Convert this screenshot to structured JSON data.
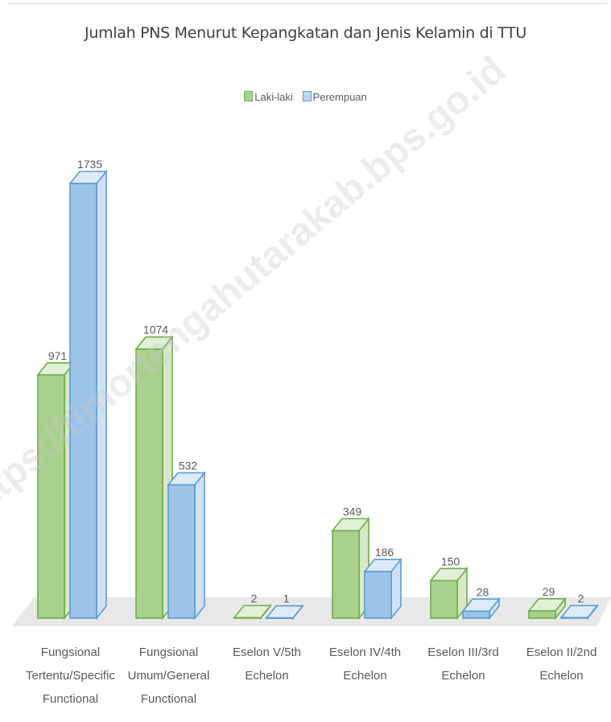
{
  "chart_data": {
    "type": "bar",
    "title": "Jumlah PNS Menurut Kepangkatan dan Jenis Kelamin di TTU",
    "categories": [
      [
        "Fungsional",
        "Tertentu/Specific",
        "Functional"
      ],
      [
        "Fungsional",
        "Umum/General",
        "Functional"
      ],
      [
        "Eselon V/5th",
        "Echelon"
      ],
      [
        "Eselon IV/4th",
        "Echelon"
      ],
      [
        "Eselon III/3rd",
        "Echelon"
      ],
      [
        "Eselon II/2nd",
        "Echelon"
      ]
    ],
    "series": [
      {
        "name": "Laki-laki",
        "values": [
          971,
          1074,
          2,
          349,
          150,
          29
        ],
        "color": "#70ad47"
      },
      {
        "name": "Perempuan",
        "values": [
          1735,
          532,
          1,
          186,
          28,
          2
        ],
        "color": "#5b9bd5"
      }
    ],
    "ylim": [
      0,
      1900
    ],
    "legend_position": "top",
    "grid": false,
    "style": "3d-clustered-column",
    "watermark": "https://timortengahutarakab.bps.go.id"
  }
}
